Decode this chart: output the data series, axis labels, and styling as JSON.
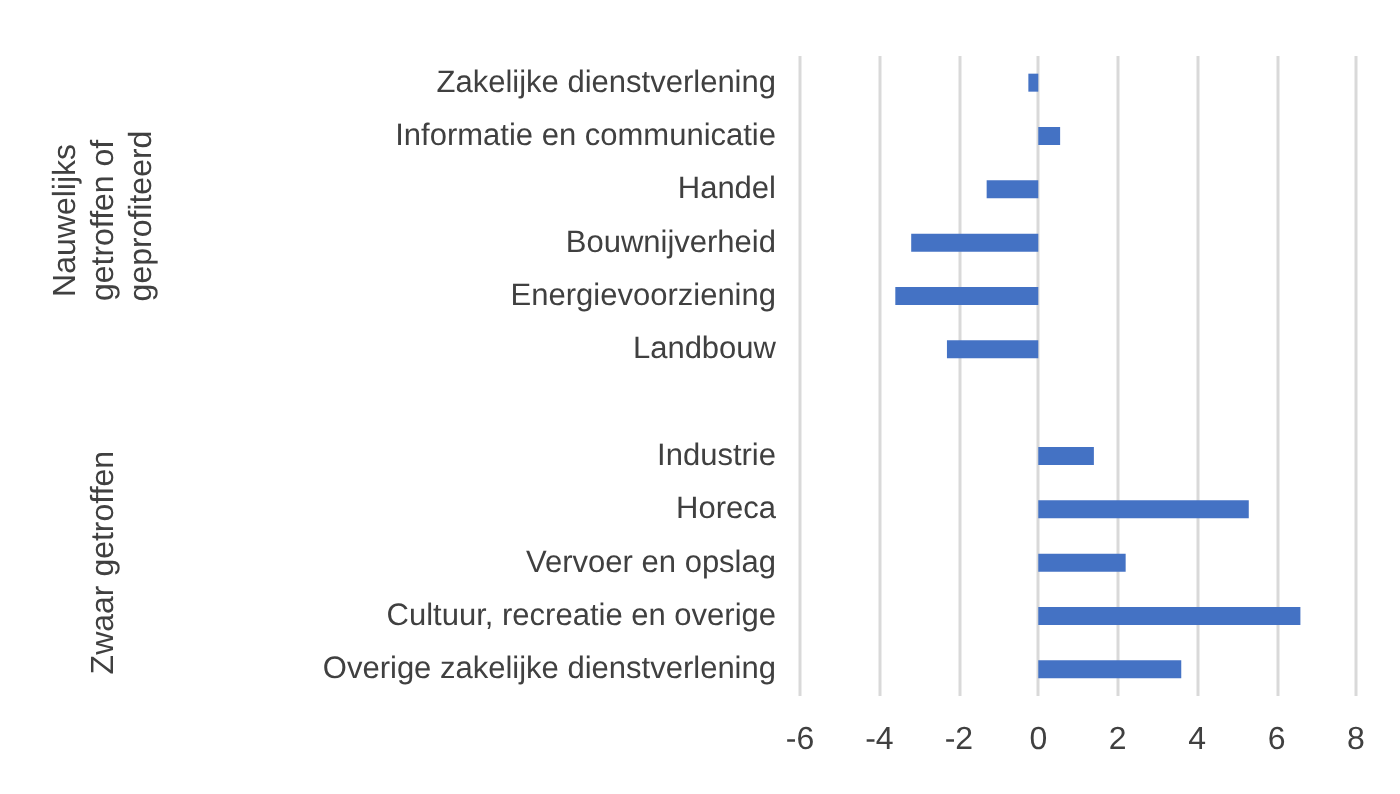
{
  "chart_data": {
    "type": "bar",
    "orientation": "horizontal",
    "categories": [
      "Zakelijke dienstverlening",
      "Informatie en communicatie",
      "Handel",
      "Bouwnijverheid",
      "Energievoorziening",
      "Landbouw",
      null,
      "Industrie",
      "Horeca",
      "Vervoer en opslag",
      "Cultuur, recreatie en overige",
      "Overige zakelijke dienstverlening"
    ],
    "values": [
      -0.25,
      0.55,
      -1.3,
      -3.2,
      -3.6,
      -2.3,
      null,
      1.4,
      5.3,
      2.2,
      6.6,
      3.6
    ],
    "color": "#4472c4",
    "xlim": [
      -6,
      8
    ],
    "xticks": [
      -6,
      -4,
      -2,
      0,
      2,
      4,
      6,
      8
    ],
    "grid": "x",
    "annotations": [
      "Nauwelijks getroffen of geprofiteerd",
      "Zwaar getroffen"
    ]
  }
}
